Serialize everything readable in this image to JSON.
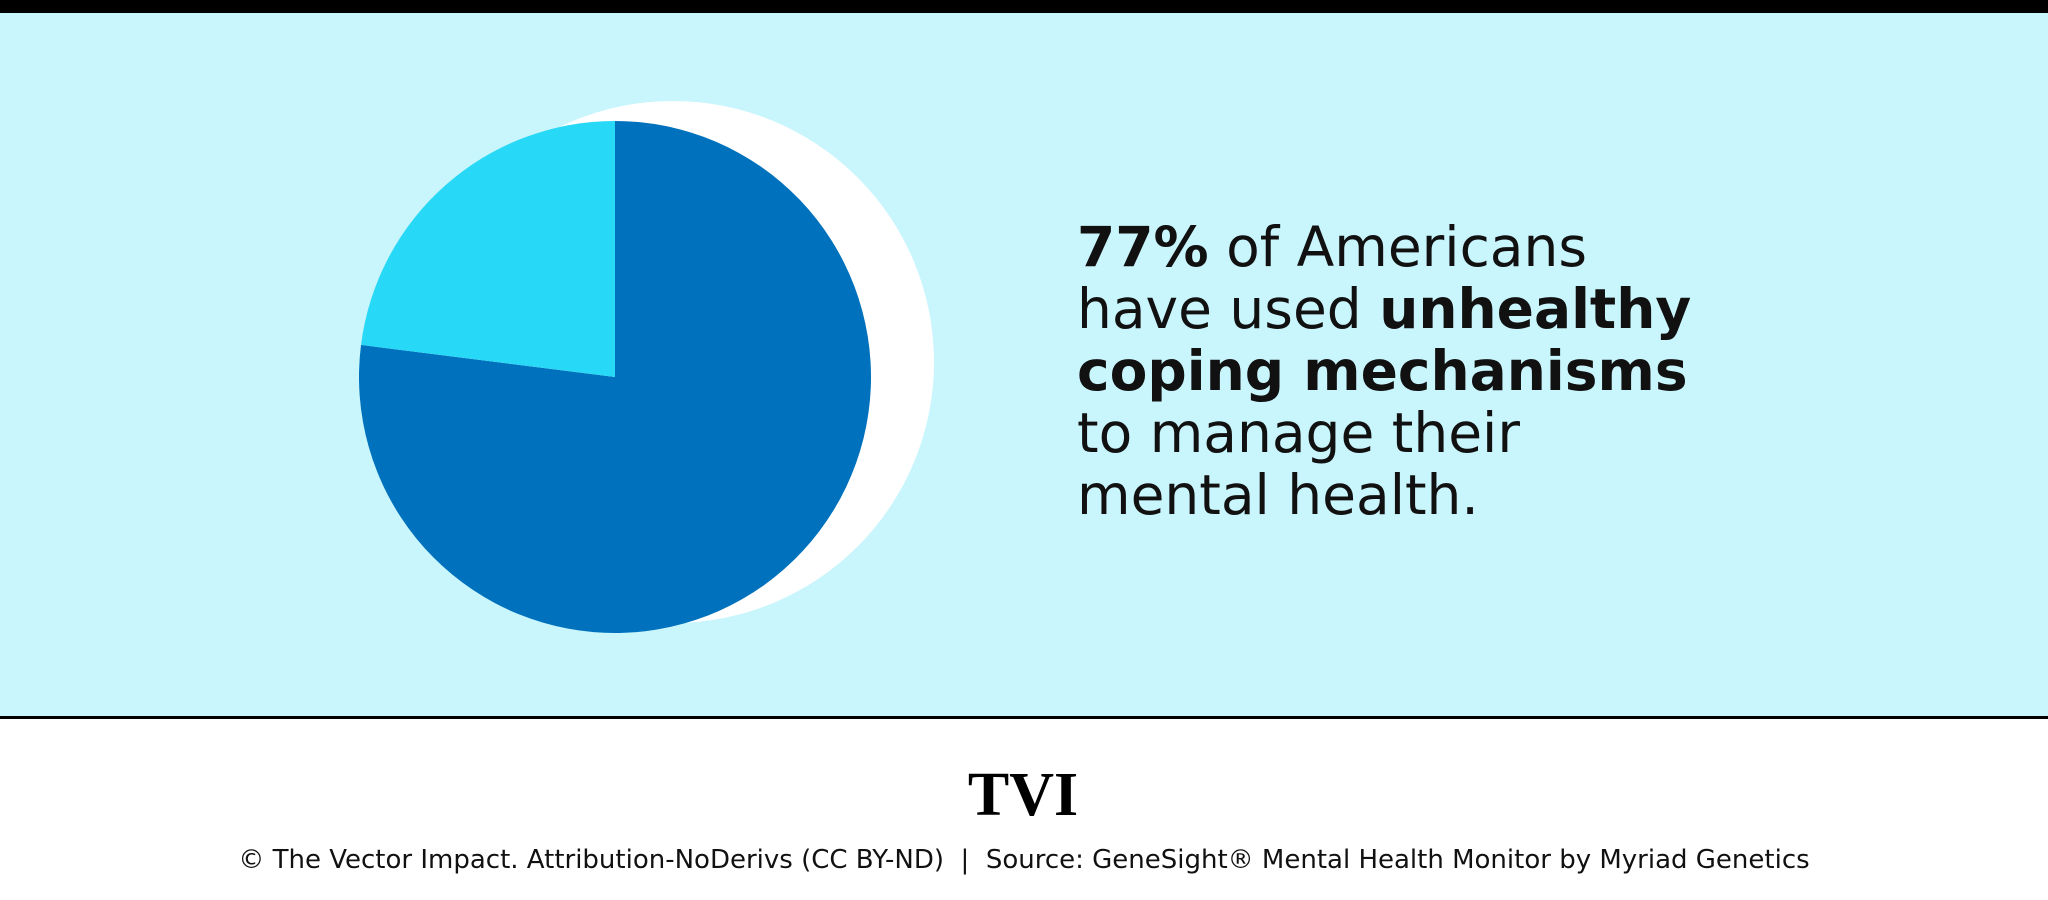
{
  "chart_data": {
    "type": "pie",
    "values": [
      77,
      23
    ],
    "colors": [
      "#0071bc",
      "#27d9f7"
    ],
    "annotation": [
      [
        {
          "text": "77%",
          "bold": true
        },
        {
          "text": " of Americans",
          "bold": false
        }
      ],
      [
        {
          "text": "have used ",
          "bold": false
        },
        {
          "text": "unhealthy",
          "bold": true
        }
      ],
      [
        {
          "text": "coping mechanisms",
          "bold": true
        }
      ],
      [
        {
          "text": "to manage their",
          "bold": false
        }
      ],
      [
        {
          "text": "mental health.",
          "bold": false
        }
      ]
    ]
  },
  "footer": {
    "logo": "TVI",
    "credit": "© The Vector Impact. Attribution-NoDerivs (CC BY-ND)  |  Source: GeneSight® Mental Health Monitor by Myriad Genetics"
  }
}
